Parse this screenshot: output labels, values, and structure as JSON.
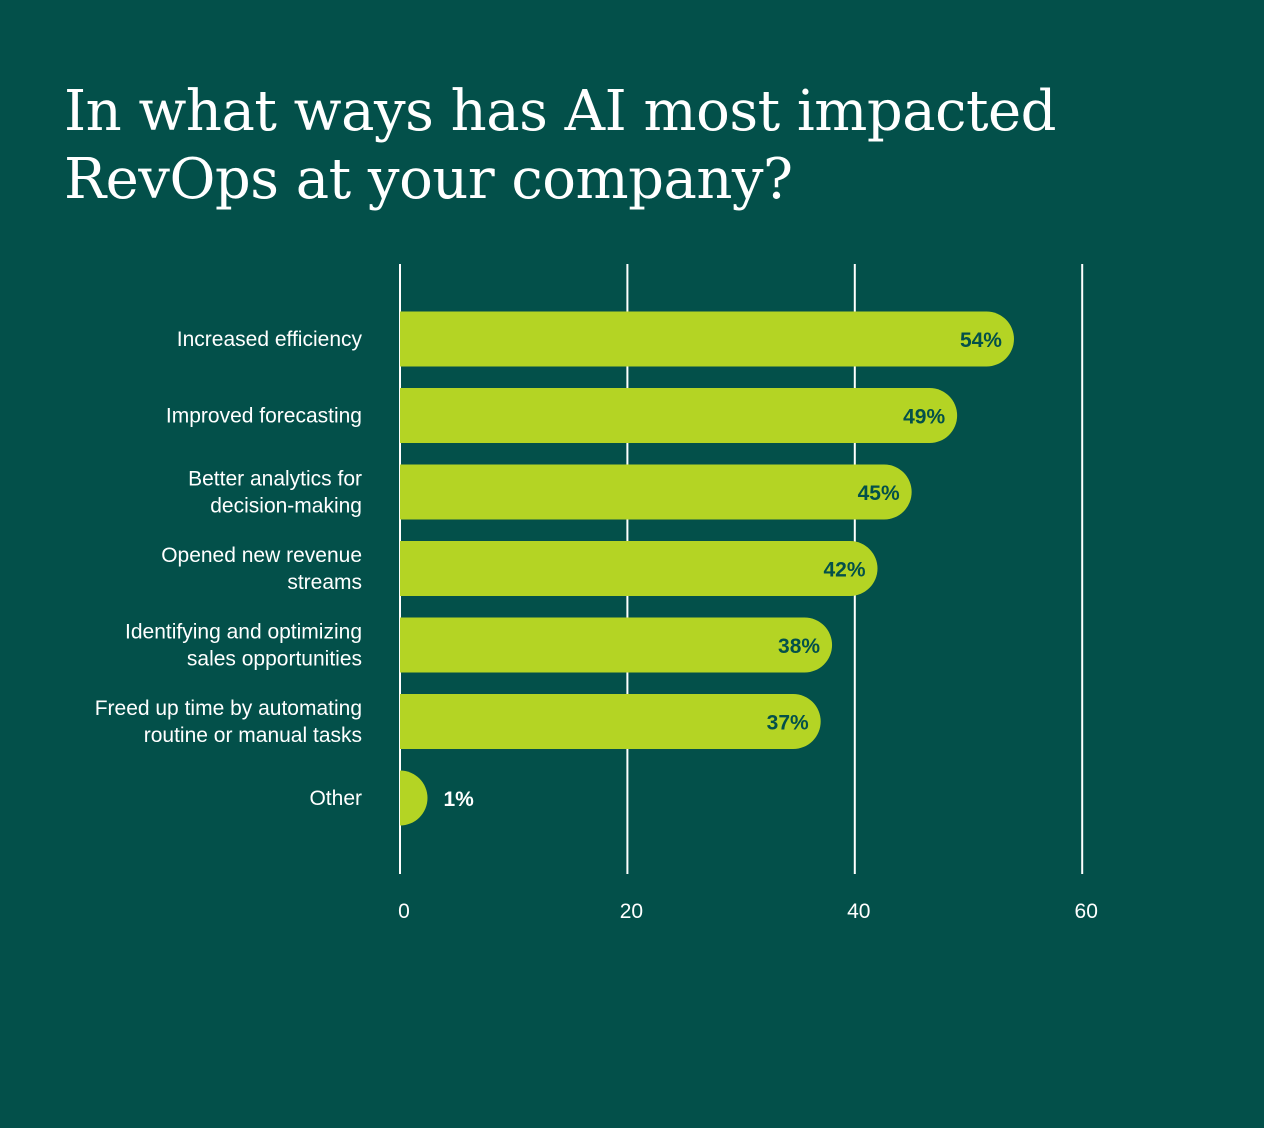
{
  "colors": {
    "background": "#03504a",
    "bar": "#b4d424",
    "value_label_inside": "#03504a",
    "value_label_outside": "#ffffff",
    "text": "#ffffff",
    "gridline": "#ffffff"
  },
  "chart_data": {
    "type": "bar",
    "orientation": "horizontal",
    "title": "In what ways has AI most impacted RevOps at your company?",
    "categories": [
      [
        "Increased efficiency"
      ],
      [
        "Improved forecasting"
      ],
      [
        "Better analytics for",
        "decision-making"
      ],
      [
        "Opened new revenue",
        "streams"
      ],
      [
        "Identifying and optimizing",
        "sales opportunities"
      ],
      [
        "Freed up time by automating",
        "routine or manual tasks"
      ],
      [
        "Other"
      ]
    ],
    "values": [
      54,
      49,
      45,
      42,
      38,
      37,
      1
    ],
    "value_labels": [
      "54%",
      "49%",
      "45%",
      "42%",
      "38%",
      "37%",
      "1%"
    ],
    "xlim": [
      0,
      60
    ],
    "xticks": [
      0,
      20,
      40,
      60
    ],
    "xtick_labels": [
      "0",
      "20",
      "40",
      "60"
    ],
    "xlabel": "",
    "ylabel": "",
    "grid": true
  }
}
